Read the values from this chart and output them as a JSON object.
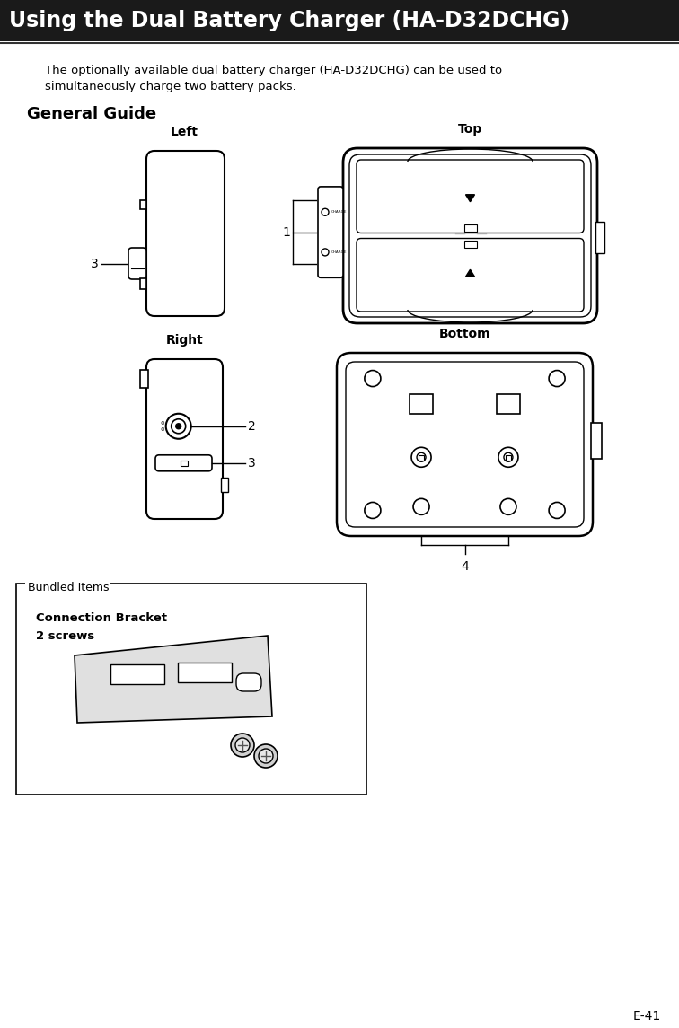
{
  "title": "Using the Dual Battery Charger (HA-D32DCHG)",
  "page_num": "E-41",
  "intro_line1": "The optionally available dual battery charger (HA-D32DCHG) can be used to",
  "intro_line2": "simultaneously charge two battery packs.",
  "section_title": "General Guide",
  "bg_color": "#ffffff",
  "text_color": "#000000",
  "title_bg": "#1a1a1a",
  "title_text_color": "#ffffff",
  "left_label": "Left",
  "top_label": "Top",
  "right_label": "Right",
  "bottom_label": "Bottom",
  "bundled_title": "Bundled Items",
  "bundled_line1": "Connection Bracket",
  "bundled_line2": "2 screws"
}
